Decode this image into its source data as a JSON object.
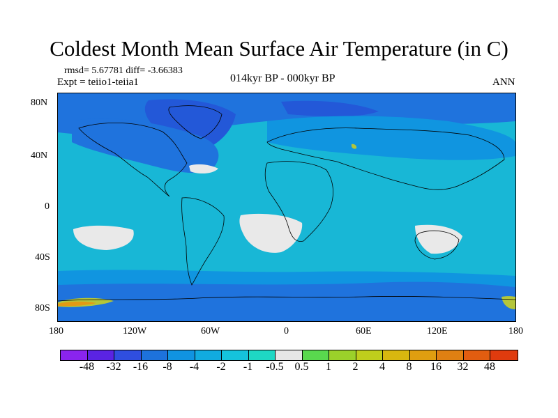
{
  "title": "Coldest Month Mean Surface Air Temperature (in C)",
  "stats": "rmsd= 5.67781 diff= -3.66383",
  "experiment": "Expt = teiio1-teiia1",
  "period_label": "014kyr BP - 000kyr BP",
  "season": "ANN",
  "map": {
    "lat_labels": [
      "80N",
      "40N",
      "0",
      "40S",
      "80S"
    ],
    "lon_labels": [
      "180",
      "120W",
      "60W",
      "0",
      "60E",
      "120E",
      "180"
    ],
    "colors": {
      "ocean": "#18b7d6",
      "cool": "#1095e0",
      "cold": "#1f73dd",
      "colder": "#2358d8",
      "neutral": "#e9e9e9",
      "warm": "#b4c63a",
      "hot": "#e39a14"
    }
  },
  "colorbar": {
    "colors": [
      "#8a24ee",
      "#5a23e3",
      "#2f4ee0",
      "#1d72dc",
      "#1093e1",
      "#11abe0",
      "#15c3dc",
      "#1ed7c4",
      "#e6e6e6",
      "#59d84e",
      "#9bd12a",
      "#bfce1c",
      "#d8b70f",
      "#e09e10",
      "#e08012",
      "#e25d10",
      "#e03b0e"
    ],
    "labels": [
      "-48",
      "-32",
      "-16",
      "-8",
      "-4",
      "-2",
      "-1",
      "-0.5",
      "0.5",
      "1",
      "2",
      "4",
      "8",
      "16",
      "32",
      "48"
    ]
  }
}
